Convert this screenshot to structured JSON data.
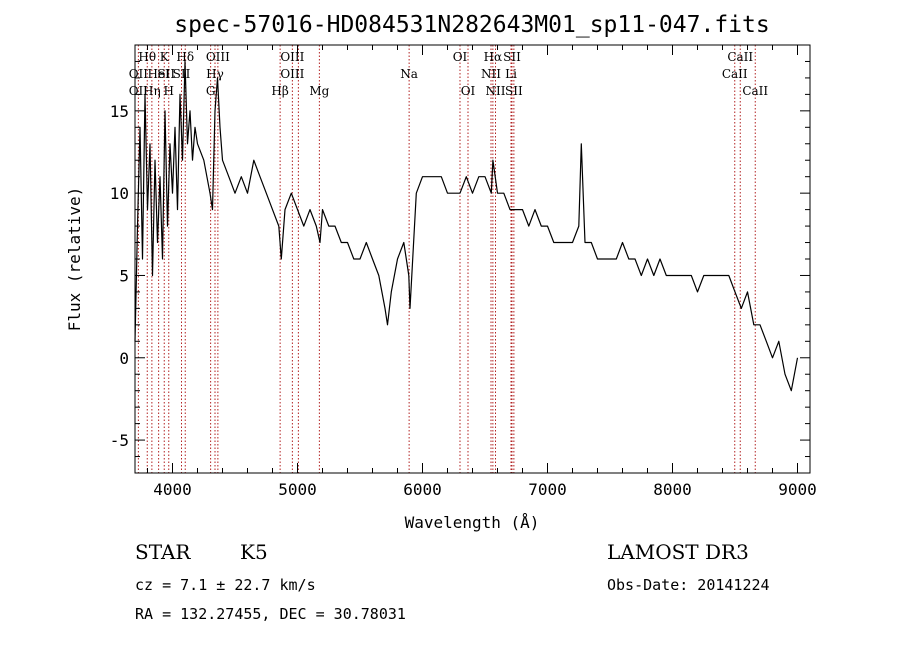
{
  "chart_data": {
    "type": "line",
    "title": "spec-57016-HD084531N282643M01_sp11-047.fits",
    "xlabel": "Wavelength (Å)",
    "ylabel": "Flux (relative)",
    "xlim": [
      3700,
      9100
    ],
    "ylim": [
      -7,
      19
    ],
    "x_ticks": [
      4000,
      5000,
      6000,
      7000,
      8000,
      9000
    ],
    "y_ticks": [
      -5,
      0,
      5,
      10,
      15
    ],
    "grid": false,
    "series": [
      {
        "x": [
          3700,
          3720,
          3740,
          3760,
          3780,
          3800,
          3820,
          3840,
          3860,
          3880,
          3900,
          3920,
          3940,
          3960,
          3980,
          4000,
          4020,
          4040,
          4060,
          4080,
          4100,
          4120,
          4140,
          4160,
          4180,
          4200,
          4250,
          4300,
          4320,
          4340,
          4360,
          4380,
          4400,
          4450,
          4500,
          4550,
          4600,
          4650,
          4700,
          4750,
          4800,
          4850,
          4870,
          4900,
          4950,
          5000,
          5050,
          5100,
          5150,
          5180,
          5200,
          5250,
          5300,
          5350,
          5400,
          5450,
          5500,
          5550,
          5600,
          5650,
          5700,
          5720,
          5750,
          5800,
          5850,
          5890,
          5900,
          5950,
          6000,
          6050,
          6100,
          6150,
          6200,
          6250,
          6300,
          6350,
          6400,
          6450,
          6500,
          6550,
          6563,
          6600,
          6650,
          6700,
          6750,
          6800,
          6850,
          6900,
          6950,
          7000,
          7050,
          7100,
          7150,
          7200,
          7250,
          7270,
          7300,
          7350,
          7400,
          7450,
          7500,
          7550,
          7600,
          7650,
          7700,
          7750,
          7800,
          7850,
          7900,
          7950,
          8000,
          8050,
          8100,
          8150,
          8200,
          8250,
          8300,
          8350,
          8400,
          8450,
          8500,
          8550,
          8600,
          8650,
          8700,
          8750,
          8800,
          8850,
          8900,
          8950,
          9000
        ],
        "y": [
          1,
          8,
          14,
          6,
          16,
          9,
          13,
          5,
          12,
          7,
          11,
          6,
          15,
          8,
          13,
          10,
          14,
          9,
          16,
          12,
          18,
          13,
          15,
          12,
          14,
          13,
          12,
          10,
          9,
          15,
          17,
          14,
          12,
          11,
          10,
          11,
          10,
          12,
          11,
          10,
          9,
          8,
          6,
          9,
          10,
          9,
          8,
          9,
          8,
          7,
          9,
          8,
          8,
          7,
          7,
          6,
          6,
          7,
          6,
          5,
          3,
          2,
          4,
          6,
          7,
          5,
          3,
          10,
          11,
          11,
          11,
          11,
          10,
          10,
          10,
          11,
          10,
          11,
          11,
          10,
          12,
          10,
          10,
          9,
          9,
          9,
          8,
          9,
          8,
          8,
          7,
          7,
          7,
          7,
          8,
          13,
          7,
          7,
          6,
          6,
          6,
          6,
          7,
          6,
          6,
          5,
          6,
          5,
          6,
          5,
          5,
          5,
          5,
          5,
          4,
          5,
          5,
          5,
          5,
          5,
          4,
          3,
          4,
          2,
          2,
          1,
          0,
          1,
          -1,
          -2,
          0
        ]
      }
    ],
    "annotations": [
      {
        "label": "OII",
        "x": 3727,
        "row": 2
      },
      {
        "label": "OII",
        "x": 3727,
        "row": 3
      },
      {
        "label": "Hθ",
        "x": 3798,
        "row": 1
      },
      {
        "label": "Hη",
        "x": 3835,
        "row": 3
      },
      {
        "label": "HeI",
        "x": 3889,
        "row": 2
      },
      {
        "label": "K",
        "x": 3934,
        "row": 1
      },
      {
        "label": "SII",
        "x": 3950,
        "row": 2
      },
      {
        "label": "H",
        "x": 3970,
        "row": 3
      },
      {
        "label": "Hδ",
        "x": 4102,
        "row": 1
      },
      {
        "label": "SII",
        "x": 4072,
        "row": 2
      },
      {
        "label": "OIII",
        "x": 4363,
        "row": 1
      },
      {
        "label": "Hγ",
        "x": 4340,
        "row": 2
      },
      {
        "label": "G",
        "x": 4305,
        "row": 3
      },
      {
        "label": "OIII",
        "x": 4959,
        "row": 1
      },
      {
        "label": "OIII",
        "x": 4959,
        "row": 2
      },
      {
        "label": "Hβ",
        "x": 4861,
        "row": 3
      },
      {
        "label": "Mg",
        "x": 5175,
        "row": 3
      },
      {
        "label": "Na",
        "x": 5893,
        "row": 2
      },
      {
        "label": "OI",
        "x": 6300,
        "row": 1
      },
      {
        "label": "OI",
        "x": 6364,
        "row": 3
      },
      {
        "label": "Hα",
        "x": 6563,
        "row": 1
      },
      {
        "label": "SII",
        "x": 6716,
        "row": 1
      },
      {
        "label": "NII",
        "x": 6548,
        "row": 2
      },
      {
        "label": "Li",
        "x": 6708,
        "row": 2
      },
      {
        "label": "NII",
        "x": 6584,
        "row": 3
      },
      {
        "label": "SII",
        "x": 6731,
        "row": 3
      },
      {
        "label": "CaII",
        "x": 8542,
        "row": 1
      },
      {
        "label": "CaII",
        "x": 8498,
        "row": 2
      },
      {
        "label": "CaII",
        "x": 8662,
        "row": 3
      }
    ],
    "line_markers": [
      3727,
      3798,
      3835,
      3889,
      3934,
      3970,
      4072,
      4102,
      4305,
      4340,
      4363,
      4861,
      4959,
      5007,
      5175,
      5893,
      6300,
      6364,
      6548,
      6563,
      6584,
      6708,
      6716,
      6731,
      8498,
      8542,
      8662
    ],
    "colors": {
      "spectrum": "#000000",
      "markers": "#b22222"
    }
  },
  "footer": {
    "object_class": "STAR",
    "subclass": "K5",
    "survey": "LAMOST DR3",
    "cz": "cz = 7.1 ± 22.7 km/s",
    "obs_date": "Obs-Date: 20141224",
    "radec": "RA = 132.27455, DEC =  30.78031"
  }
}
